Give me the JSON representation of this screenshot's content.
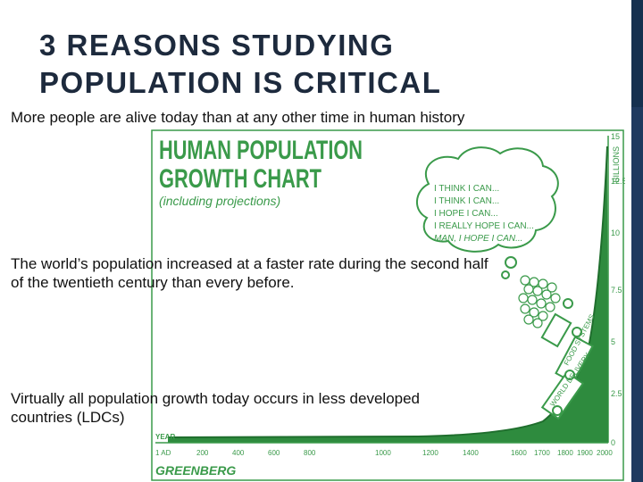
{
  "slide": {
    "title_line1": "3 REASONS STUDYING",
    "title_line2": "POPULATION IS CRITICAL",
    "bullets": [
      "More people are alive today than at any other time in human history",
      "The world’s population increased at a faster rate during the second half of the twentieth century than every before.",
      "Virtually all population growth today occurs in less developed countries (LDCs)"
    ]
  },
  "cartoon": {
    "heading_line1": "HUMAN POPULATION",
    "heading_line2": "GROWTH CHART",
    "subheading": "(including projections)",
    "thought_lines": [
      "I THINK I CAN...",
      "I THINK I CAN...",
      "I HOPE I CAN...",
      "I REALLY HOPE I CAN...",
      "MAN, I HOPE I CAN..."
    ],
    "y_unit": "BILLIONS",
    "y_ticks": [
      "15",
      "12.5",
      "10",
      "7.5",
      "5",
      "2.5",
      "0"
    ],
    "x_label": "YEAR",
    "x_ticks": [
      "1 AD",
      "200",
      "400",
      "600",
      "800",
      "1000",
      "1200",
      "1400",
      "1600",
      "1700",
      "1800",
      "1900",
      "2000"
    ],
    "train_labels": [
      "FOOD SYSTEMS",
      "WORLD DELIVERY"
    ],
    "signature": "GREENBERG",
    "colors": {
      "ink": "#3a9a4a",
      "fill": "#2e8b3e",
      "text": "#111111",
      "title": "#1d2a3d",
      "accent": "#1f3a5f"
    }
  }
}
